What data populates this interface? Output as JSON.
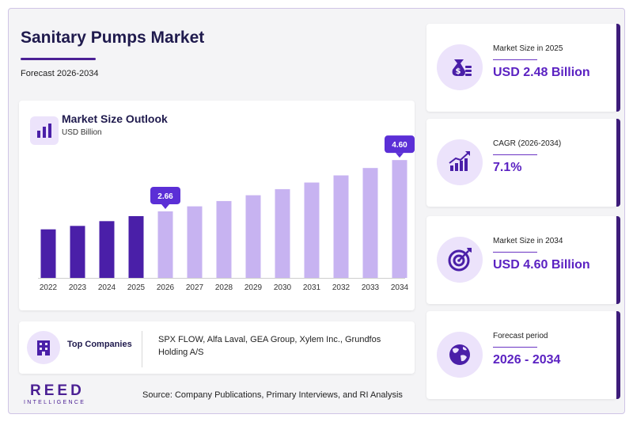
{
  "header": {
    "title": "Sanitary Pumps Market",
    "subtitle": "Forecast 2026-2034"
  },
  "colors": {
    "brand": "#4b2094",
    "historical_bar": "#4a1fa8",
    "forecast_bar": "#c7b3f1",
    "callout": "#5b2fd6",
    "accent_text": "#5b22c2"
  },
  "chart_data": {
    "type": "bar",
    "title": "Market Size Outlook",
    "unit": "USD Billion",
    "categories": [
      "2022",
      "2023",
      "2024",
      "2025",
      "2026",
      "2027",
      "2028",
      "2029",
      "2030",
      "2031",
      "2032",
      "2033",
      "2034"
    ],
    "values": [
      1.98,
      2.11,
      2.29,
      2.48,
      2.66,
      2.85,
      3.05,
      3.27,
      3.5,
      3.75,
      4.02,
      4.3,
      4.6
    ],
    "historical_through": "2025",
    "callouts": [
      {
        "category": "2026",
        "label": "2.66"
      },
      {
        "category": "2034",
        "label": "4.60"
      }
    ],
    "icon": "bar-chart-icon"
  },
  "companies": {
    "label": "Top Companies",
    "list": "SPX FLOW, Alfa Laval, GEA Group, Xylem Inc., Grundfos Holding A/S",
    "icon": "building-icon"
  },
  "footer": {
    "logo_main": "REED",
    "logo_sub": "INTELLIGENCE",
    "source": "Source: Company Publications, Primary Interviews, and RI Analysis"
  },
  "stats": [
    {
      "label": "Market Size in 2025",
      "value": "USD 2.48 Billion",
      "icon": "money-bag-icon"
    },
    {
      "label": "CAGR (2026-2034)",
      "value": "7.1%",
      "icon": "growth-chart-icon"
    },
    {
      "label": "Market Size in 2034",
      "value": "USD 4.60 Billion",
      "icon": "target-icon"
    },
    {
      "label": "Forecast period",
      "value": "2026 - 2034",
      "icon": "globe-icon"
    }
  ]
}
